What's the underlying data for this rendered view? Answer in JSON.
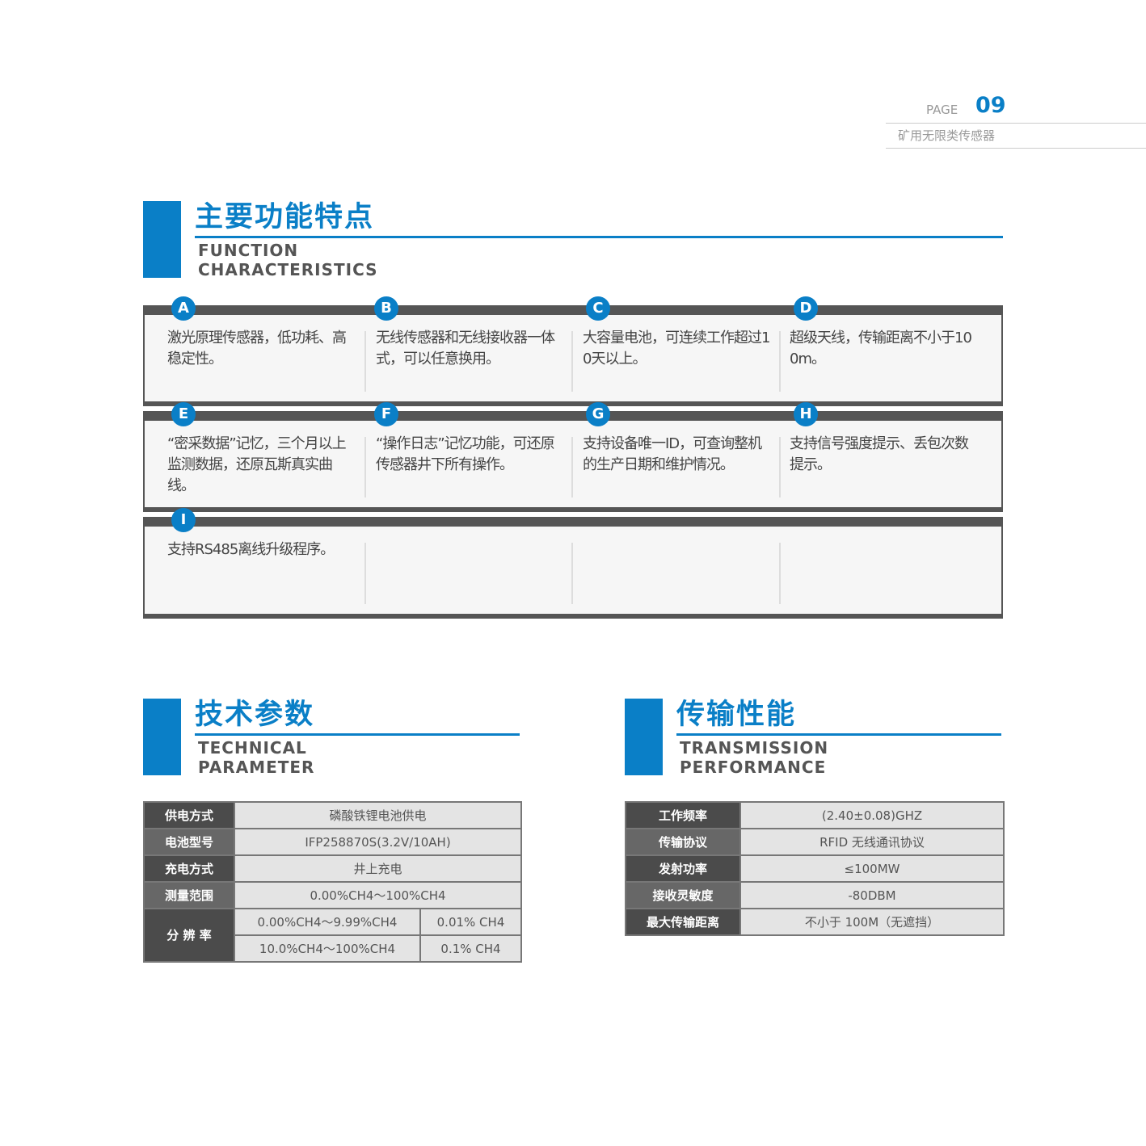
{
  "header": {
    "page_label": "PAGE",
    "page_number": "09",
    "category": "矿用无限类传感器"
  },
  "colors": {
    "accent": "#0a7fc7",
    "dark": "#555555"
  },
  "features": {
    "title_cn": "主要功能特点",
    "title_en_1": "FUNCTION",
    "title_en_2": "CHARACTERISTICS",
    "items": [
      {
        "badge": "A",
        "text": "激光原理传感器，低功耗、高稳定性。"
      },
      {
        "badge": "B",
        "text": "无线传感器和无线接收器一体式，可以任意换用。"
      },
      {
        "badge": "C",
        "text": "大容量电池，可连续工作超过10天以上。"
      },
      {
        "badge": "D",
        "text": "超级天线，传输距离不小于100m。"
      },
      {
        "badge": "E",
        "text": "“密采数据”记忆，三个月以上监测数据，还原瓦斯真实曲线。"
      },
      {
        "badge": "F",
        "text": "“操作日志”记忆功能，可还原传感器井下所有操作。"
      },
      {
        "badge": "G",
        "text": "支持设备唯一ID，可查询整机的生产日期和维护情况。"
      },
      {
        "badge": "H",
        "text": "支持信号强度提示、丢包次数提示。"
      },
      {
        "badge": "I",
        "text": "支持RS485离线升级程序。"
      }
    ]
  },
  "technical": {
    "title_cn": "技术参数",
    "title_en_1": "TECHNICAL",
    "title_en_2": "PARAMETER",
    "rows": [
      {
        "label": "供电方式",
        "value": "磷酸铁锂电池供电"
      },
      {
        "label": "电池型号",
        "value": "IFP258870S(3.2V/10AH)"
      },
      {
        "label": "充电方式",
        "value": "井上充电"
      },
      {
        "label": "测量范围",
        "value": "0.00%CH4～100%CH4"
      }
    ],
    "resolution": {
      "label": "分 辨 率",
      "rows": [
        {
          "range": "0.00%CH4～9.99%CH4",
          "value": "0.01% CH4"
        },
        {
          "range": "10.0%CH4～100%CH4",
          "value": "0.1% CH4"
        }
      ]
    }
  },
  "transmission": {
    "title_cn": "传输性能",
    "title_en_1": "TRANSMISSION",
    "title_en_2": "PERFORMANCE",
    "rows": [
      {
        "label": "工作频率",
        "value": "(2.40±0.08)GHZ"
      },
      {
        "label": "传输协议",
        "value": "RFID 无线通讯协议"
      },
      {
        "label": "发射功率",
        "value": "≤100MW"
      },
      {
        "label": "接收灵敏度",
        "value": "-80DBM"
      },
      {
        "label": "最大传输距离",
        "value": "不小于 100M（无遮挡）"
      }
    ]
  }
}
